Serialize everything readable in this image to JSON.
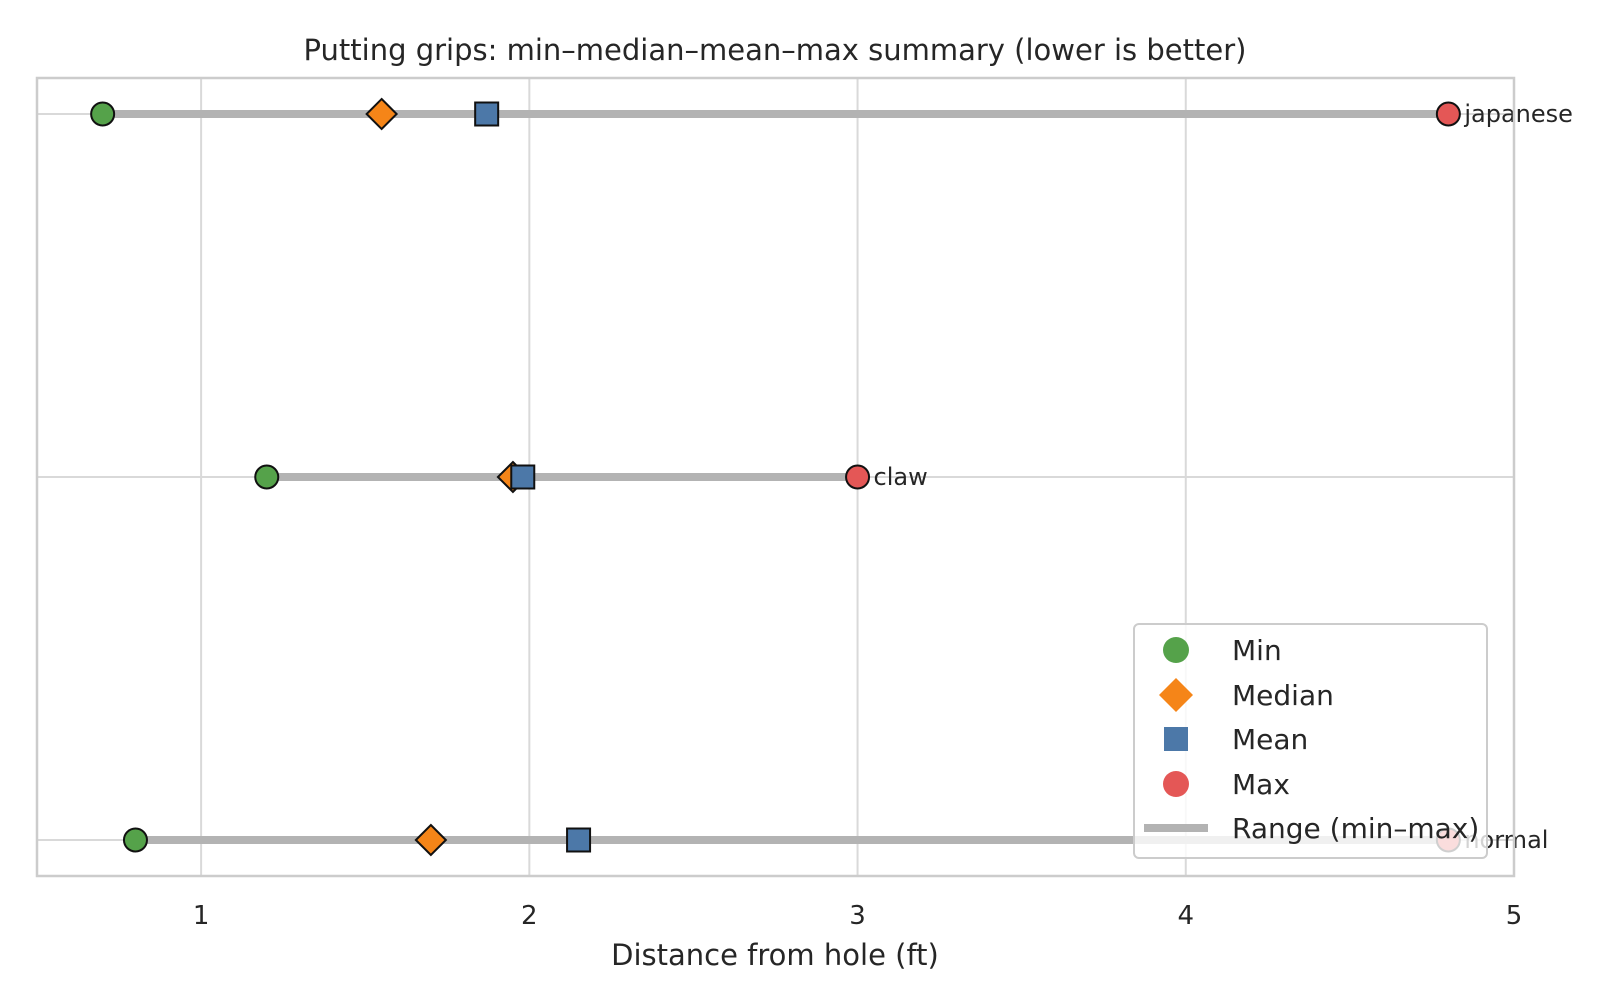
{
  "chart_data": {
    "type": "dot-range",
    "title": "Putting grips: min–median–mean–max summary (lower is better)",
    "xlabel": "Distance from hole (ft)",
    "ylabel": "",
    "xlim": [
      0.5,
      5.0
    ],
    "xticks": [
      1,
      2,
      3,
      4,
      5
    ],
    "grid": true,
    "legend_position": "lower-right",
    "categories": [
      "japanese",
      "claw",
      "normal"
    ],
    "series": [
      {
        "name": "Min",
        "marker": "circle",
        "color": "#55a24a",
        "values": [
          0.7,
          1.2,
          0.8
        ]
      },
      {
        "name": "Median",
        "marker": "diamond",
        "color": "#f58518",
        "values": [
          1.55,
          1.95,
          1.7
        ]
      },
      {
        "name": "Mean",
        "marker": "square",
        "color": "#4c78a8",
        "values": [
          1.87,
          1.98,
          2.15
        ]
      },
      {
        "name": "Max",
        "marker": "circle",
        "color": "#e45756",
        "values": [
          4.8,
          3.0,
          4.8
        ]
      }
    ],
    "range_series": {
      "name": "Range (min–max)",
      "color": "#b3b3b3"
    }
  }
}
